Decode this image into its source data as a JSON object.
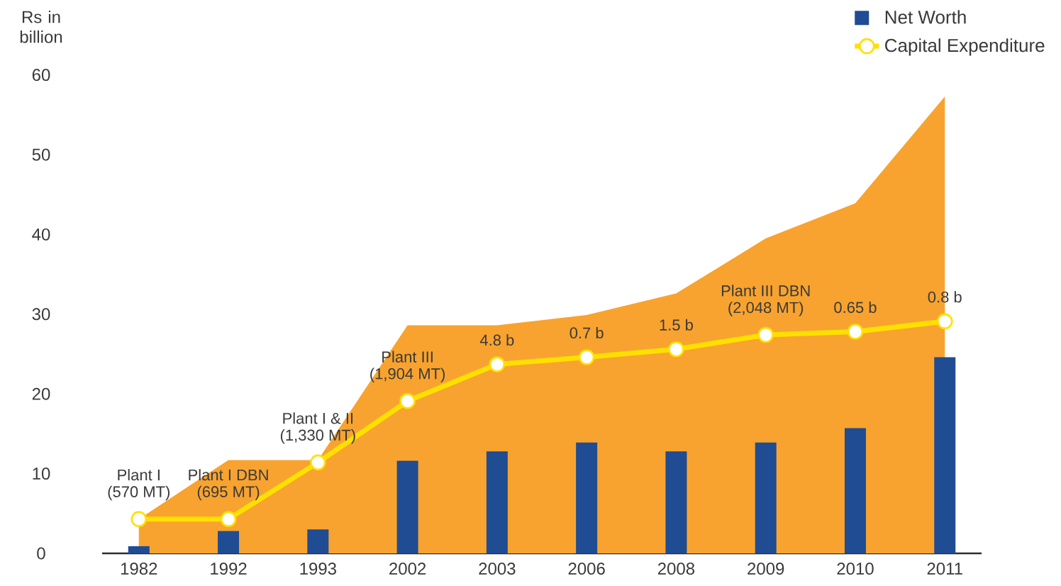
{
  "chart_data": {
    "type": "bar",
    "ylabel": "Rs in billion",
    "legend": "top right",
    "categories": [
      "1982",
      "1992",
      "1993",
      "2002",
      "2003",
      "2006",
      "2008",
      "2009",
      "2010",
      "2011"
    ],
    "ylim": [
      0,
      60
    ],
    "yticks": [
      0,
      10,
      20,
      30,
      40,
      50,
      60
    ],
    "series": [
      {
        "type": "area",
        "color": "#f8a32f",
        "values": [
          4.3,
          11.7,
          11.7,
          28.6,
          28.6,
          29.9,
          32.6,
          39.5,
          43.9,
          57.3
        ]
      },
      {
        "name": "Net Worth",
        "color": "#1f4c93",
        "values": [
          0.9,
          2.8,
          3.0,
          11.6,
          12.8,
          13.9,
          12.8,
          13.9,
          15.7,
          24.6
        ]
      },
      {
        "name": "Capital Expenditure",
        "type": "line",
        "color": "#ffe000",
        "marker": "circle",
        "values": [
          4.3,
          4.3,
          11.4,
          19.1,
          23.7,
          24.6,
          25.6,
          27.4,
          27.8,
          29.1
        ]
      }
    ],
    "annotations": [
      {
        "text": "Plant I",
        "x": "1982",
        "y": 4.3
      },
      {
        "text": "(570 MT)",
        "x": "1982",
        "y": 4.3
      },
      {
        "text": "Plant I DBN",
        "x": "1992",
        "y": 4.3
      },
      {
        "text": "(695 MT)",
        "x": "1992",
        "y": 4.3
      },
      {
        "text": "Plant I & II",
        "x": "1993",
        "y": 11.4
      },
      {
        "text": "(1,330 MT)",
        "x": "1993",
        "y": 11.4
      },
      {
        "text": "Plant III",
        "x": "2002",
        "y": 19.1
      },
      {
        "text": "(1,904 MT)",
        "x": "2002",
        "y": 19.1
      },
      {
        "text": "4.8 b",
        "x": "2003",
        "y": 23.7
      },
      {
        "text": "0.7 b",
        "x": "2006",
        "y": 24.6
      },
      {
        "text": "1.5 b",
        "x": "2008",
        "y": 25.6
      },
      {
        "text": "Plant III DBN",
        "x": "2009",
        "y": 27.4
      },
      {
        "text": "(2,048 MT)",
        "x": "2009",
        "y": 27.4
      },
      {
        "text": "0.65 b",
        "x": "2010",
        "y": 27.8
      },
      {
        "text": "0.8 b",
        "x": "2011",
        "y": 29.1
      }
    ]
  }
}
